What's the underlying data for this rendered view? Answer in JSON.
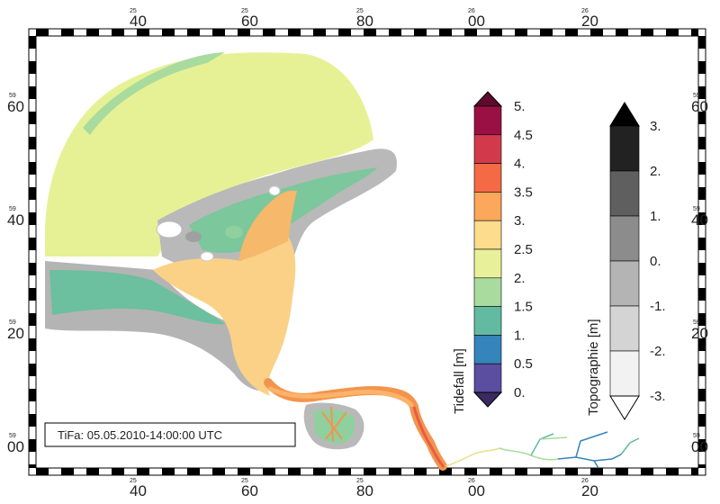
{
  "map": {
    "timestamp": "TiFa: 05.05.2010-14:00:00 UTC",
    "top_ticks": [
      {
        "small": "25",
        "big": "40"
      },
      {
        "small": "25",
        "big": "60"
      },
      {
        "small": "25",
        "big": "80"
      },
      {
        "small": "26",
        "big": "00"
      },
      {
        "small": "26",
        "big": "20"
      }
    ],
    "bottom_ticks": [
      {
        "small": "25",
        "big": "40"
      },
      {
        "small": "25",
        "big": "60"
      },
      {
        "small": "25",
        "big": "80"
      },
      {
        "small": "26",
        "big": "00"
      },
      {
        "small": "26",
        "big": "20"
      }
    ],
    "left_ticks": [
      {
        "small": "59",
        "big": "60"
      },
      {
        "small": "59",
        "big": "40"
      },
      {
        "small": "59",
        "big": "20"
      },
      {
        "small": "59",
        "big": "00"
      }
    ],
    "right_ticks": [
      {
        "small": "59",
        "big": "60"
      },
      {
        "small": "59",
        "big": "40"
      },
      {
        "small": "59",
        "big": "20"
      },
      {
        "small": "59",
        "big": "00"
      }
    ]
  },
  "tidefall_legend": {
    "title": "Tidefall [m]",
    "labels": [
      "5.",
      "4.5",
      "4.",
      "3.5",
      "3.",
      "2.5",
      "2.",
      "1.5",
      "1.",
      "0.5",
      "0."
    ],
    "colors": [
      "#9b1044",
      "#d23a4c",
      "#f36a45",
      "#fba75c",
      "#fddc8c",
      "#e8f199",
      "#a9db9e",
      "#62bba0",
      "#3584bb",
      "#5b4d9f"
    ],
    "top_arrow_color": "#5e0a2e",
    "bottom_arrow_color": "#3a2a60"
  },
  "topo_legend": {
    "title": "Topographie [m]",
    "labels": [
      "3.",
      "2.",
      "1.",
      "0.",
      "-1.",
      "-2.",
      "-3."
    ],
    "colors": [
      "#222222",
      "#5f5f5f",
      "#8c8c8c",
      "#b4b4b4",
      "#d4d4d4",
      "#f2f2f2"
    ],
    "top_arrow_color": "#000000",
    "bottom_arrow_color": "#ffffff"
  }
}
